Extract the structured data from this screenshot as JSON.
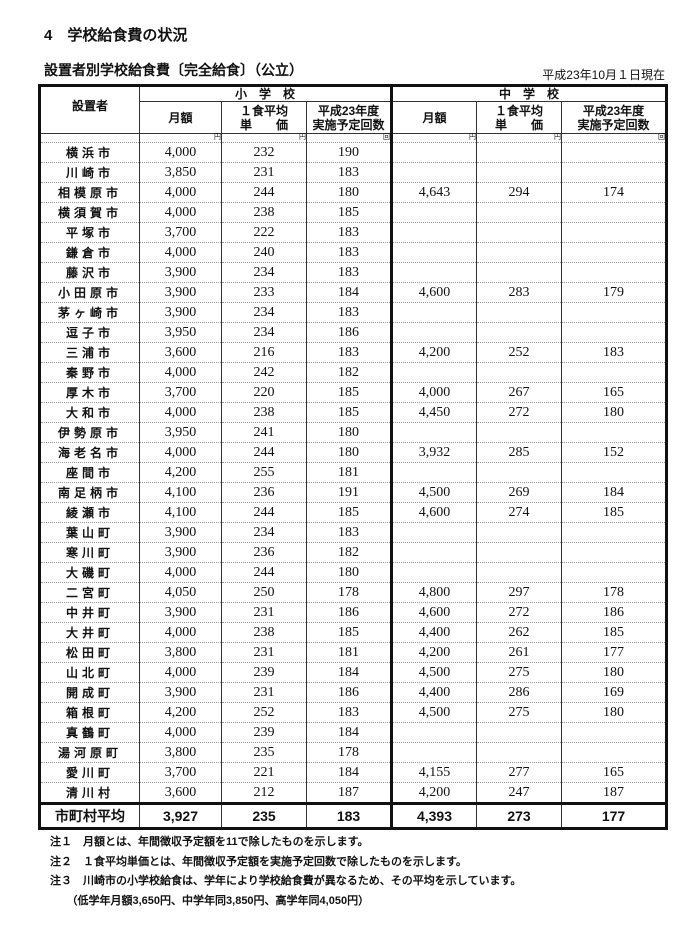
{
  "title": "4　学校給食費の状況",
  "subtitle": "設置者別学校給食費〔完全給食〕（公立）",
  "as_of": "平成23年10月１日現在",
  "headers": {
    "setter": "設置者",
    "elementary": "小　学　校",
    "junior": "中　学　校",
    "monthly": "月額",
    "unit_price_1": "１食平均",
    "unit_price_2": "単　　価",
    "count_1": "平成23年度",
    "count_2": "実施予定回数",
    "yen": "円",
    "times": "回"
  },
  "rows": [
    [
      "横浜市",
      "4,000",
      "232",
      "190",
      "",
      "",
      ""
    ],
    [
      "川崎市",
      "3,850",
      "231",
      "183",
      "",
      "",
      ""
    ],
    [
      "相模原市",
      "4,000",
      "244",
      "180",
      "4,643",
      "294",
      "174"
    ],
    [
      "横須賀市",
      "4,000",
      "238",
      "185",
      "",
      "",
      ""
    ],
    [
      "平塚市",
      "3,700",
      "222",
      "183",
      "",
      "",
      ""
    ],
    [
      "鎌倉市",
      "4,000",
      "240",
      "183",
      "",
      "",
      ""
    ],
    [
      "藤沢市",
      "3,900",
      "234",
      "183",
      "",
      "",
      ""
    ],
    [
      "小田原市",
      "3,900",
      "233",
      "184",
      "4,600",
      "283",
      "179"
    ],
    [
      "茅ヶ崎市",
      "3,900",
      "234",
      "183",
      "",
      "",
      ""
    ],
    [
      "逗子市",
      "3,950",
      "234",
      "186",
      "",
      "",
      ""
    ],
    [
      "三浦市",
      "3,600",
      "216",
      "183",
      "4,200",
      "252",
      "183"
    ],
    [
      "秦野市",
      "4,000",
      "242",
      "182",
      "",
      "",
      ""
    ],
    [
      "厚木市",
      "3,700",
      "220",
      "185",
      "4,000",
      "267",
      "165"
    ],
    [
      "大和市",
      "4,000",
      "238",
      "185",
      "4,450",
      "272",
      "180"
    ],
    [
      "伊勢原市",
      "3,950",
      "241",
      "180",
      "",
      "",
      ""
    ],
    [
      "海老名市",
      "4,000",
      "244",
      "180",
      "3,932",
      "285",
      "152"
    ],
    [
      "座間市",
      "4,200",
      "255",
      "181",
      "",
      "",
      ""
    ],
    [
      "南足柄市",
      "4,100",
      "236",
      "191",
      "4,500",
      "269",
      "184"
    ],
    [
      "綾瀬市",
      "4,100",
      "244",
      "185",
      "4,600",
      "274",
      "185"
    ],
    [
      "葉山町",
      "3,900",
      "234",
      "183",
      "",
      "",
      ""
    ],
    [
      "寒川町",
      "3,900",
      "236",
      "182",
      "",
      "",
      ""
    ],
    [
      "大磯町",
      "4,000",
      "244",
      "180",
      "",
      "",
      ""
    ],
    [
      "二宮町",
      "4,050",
      "250",
      "178",
      "4,800",
      "297",
      "178"
    ],
    [
      "中井町",
      "3,900",
      "231",
      "186",
      "4,600",
      "272",
      "186"
    ],
    [
      "大井町",
      "4,000",
      "238",
      "185",
      "4,400",
      "262",
      "185"
    ],
    [
      "松田町",
      "3,800",
      "231",
      "181",
      "4,200",
      "261",
      "177"
    ],
    [
      "山北町",
      "4,000",
      "239",
      "184",
      "4,500",
      "275",
      "180"
    ],
    [
      "開成町",
      "3,900",
      "231",
      "186",
      "4,400",
      "286",
      "169"
    ],
    [
      "箱根町",
      "4,200",
      "252",
      "183",
      "4,500",
      "275",
      "180"
    ],
    [
      "真鶴町",
      "4,000",
      "239",
      "184",
      "",
      "",
      ""
    ],
    [
      "湯河原町",
      "3,800",
      "235",
      "178",
      "",
      "",
      ""
    ],
    [
      "愛川町",
      "3,700",
      "221",
      "184",
      "4,155",
      "277",
      "165"
    ],
    [
      "清川村",
      "3,600",
      "212",
      "187",
      "4,200",
      "247",
      "187"
    ]
  ],
  "average": [
    "市町村平均",
    "3,927",
    "235",
    "183",
    "4,393",
    "273",
    "177"
  ],
  "notes": [
    "注１　月額とは、年間徴収予定額を11で除したものを示します。",
    "注２　１食平均単価とは、年間徴収予定額を実施予定回数で除したものを示します。",
    "注３　川崎市の小学校給食は、学年により学校給食費が異なるため、その平均を示しています。",
    "　　（低学年月額3,650円、中学年同3,850円、高学年同4,050円）"
  ]
}
